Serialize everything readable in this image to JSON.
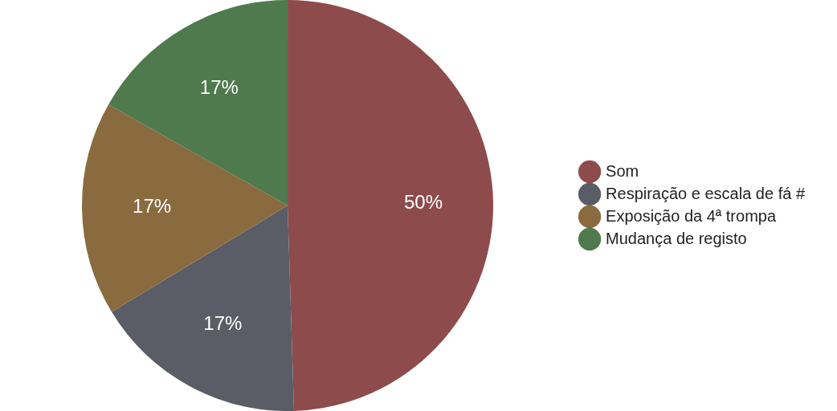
{
  "chart_data": {
    "type": "pie",
    "categories": [
      "Som",
      "Respiração e escala de fá #",
      "Exposição da 4ª trompa",
      "Mudança de registo"
    ],
    "values": [
      50,
      17,
      17,
      17
    ],
    "colors": [
      "#8e4b4c",
      "#5b5d66",
      "#8a6a3f",
      "#4f7a4d"
    ],
    "value_labels": [
      "50%",
      "17%",
      "17%",
      "17%"
    ],
    "legend": "right"
  }
}
